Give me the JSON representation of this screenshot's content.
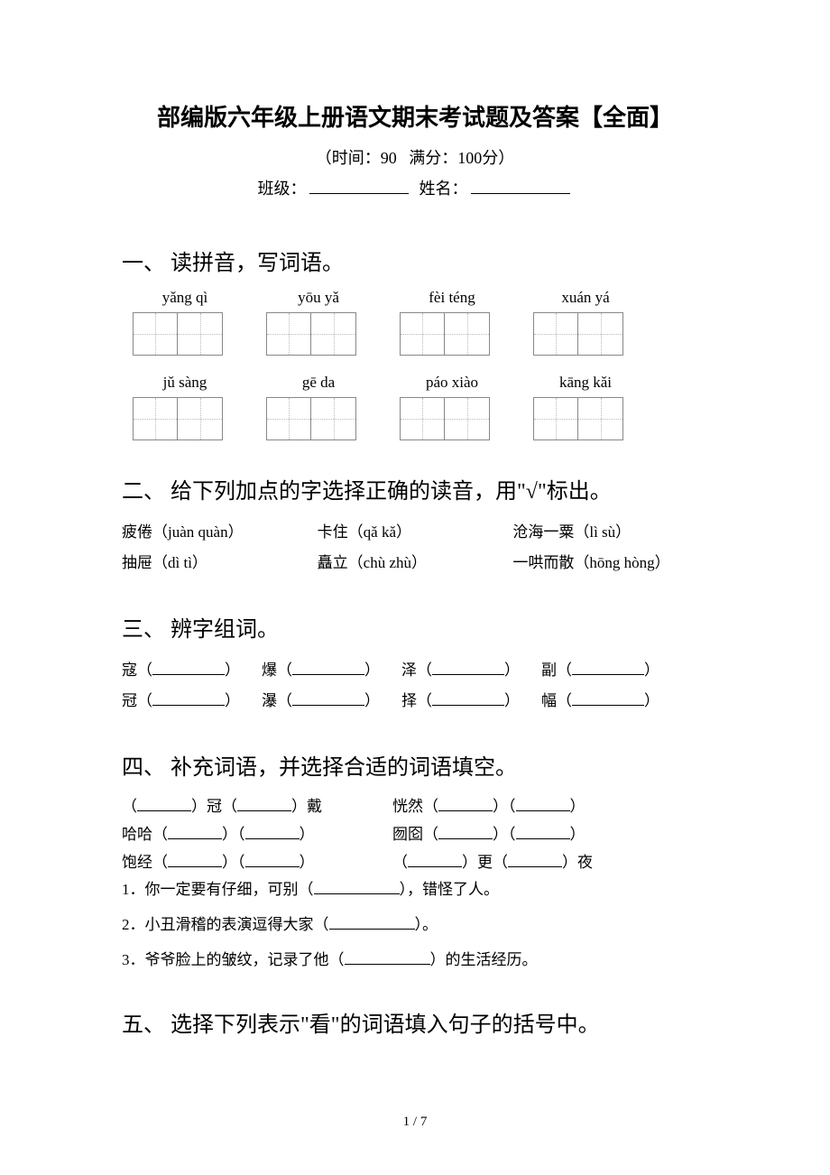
{
  "header": {
    "title": "部编版六年级上册语文期末考试题及答案【全面】",
    "time_label": "（时间：90",
    "score_label": "满分：100分）",
    "class_label": "班级：",
    "name_label": "姓名："
  },
  "section1": {
    "heading": "一、 读拼音，写词语。",
    "row1": [
      "yǎng qì",
      "yōu yǎ",
      "fèi téng",
      "xuán yá"
    ],
    "row2": [
      "jǔ sàng",
      "gē da",
      "páo xiào",
      "kāng kǎi"
    ]
  },
  "section2": {
    "heading": "二、 给下列加点的字选择正确的读音，用\"√\"标出。",
    "line1_a": "疲倦（juàn quàn）",
    "line1_b": "卡住（qǎ kǎ）",
    "line1_c": "沧海一粟（lì sù）",
    "line2_a": "抽屉（dì tì）",
    "line2_b": "矗立（chù zhù）",
    "line2_c": "一哄而散（hōng hòng）"
  },
  "section3": {
    "heading": "三、 辨字组词。",
    "r1c1": "寇（",
    "r1c2": "爆（",
    "r1c3": "泽（",
    "r1c4": "副（",
    "r2c1": "冠（",
    "r2c2": "瀑（",
    "r2c3": "择（",
    "r2c4": "幅（",
    "close": "）"
  },
  "section4": {
    "heading": "四、 补充词语，并选择合适的词语填空。",
    "l1a_pre": "（",
    "l1a_mid": "）冠（",
    "l1a_post": "）戴",
    "l1b_pre": "恍然（",
    "l1b_mid": "）（",
    "l1b_post": "）",
    "l2a_pre": "哈哈（",
    "l2a_mid": "）（",
    "l2a_post": "）",
    "l2b_pre": "囫囵（",
    "l2b_mid": "）（",
    "l2b_post": "）",
    "l3a_pre": "饱经（",
    "l3a_mid": "）（",
    "l3a_post": "）",
    "l3b_pre": "（",
    "l3b_mid": "）更（",
    "l3b_post": "）夜",
    "s1": "1．你一定要有仔细，可别（",
    "s1_post": "），错怪了人。",
    "s2": "2．小丑滑稽的表演逗得大家（",
    "s2_post": "）。",
    "s3": "3．爷爷脸上的皱纹，记录了他（",
    "s3_post": "）的生活经历。"
  },
  "section5": {
    "heading": "五、 选择下列表示\"看\"的词语填入句子的括号中。"
  },
  "footer": {
    "page": "1 / 7"
  }
}
